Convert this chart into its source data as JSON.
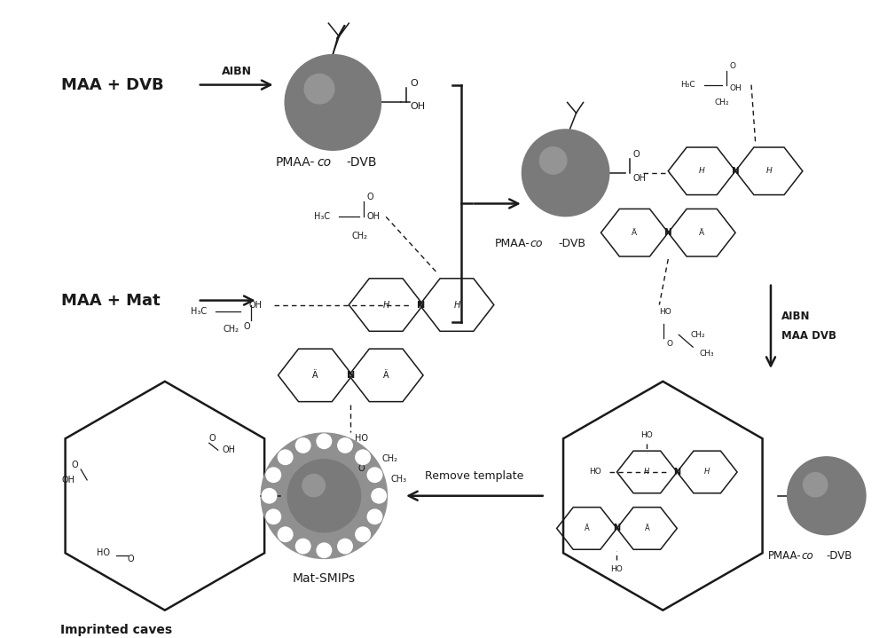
{
  "bg_color": "#ffffff",
  "fig_width": 10.0,
  "fig_height": 7.19,
  "dpi": 100,
  "sphere_color": "#7a7a7a",
  "text_color": "#1a1a1a",
  "lw_main": 1.8,
  "lw_thin": 1.1,
  "lw_dash": 1.0,
  "label_maa_dvb": "MAA + DVB",
  "label_aibn": "AIBN",
  "label_maa_mat": "MAA + Mat",
  "label_pmaa_dvb": "PMAA-co-DVB",
  "label_aibn_maa_dvb": "AIBN\nMAA DVB",
  "label_remove_template": "Remove template",
  "label_mat_smips": "Mat-SMIPs",
  "label_imprinted_caves": "Imprinted caves"
}
